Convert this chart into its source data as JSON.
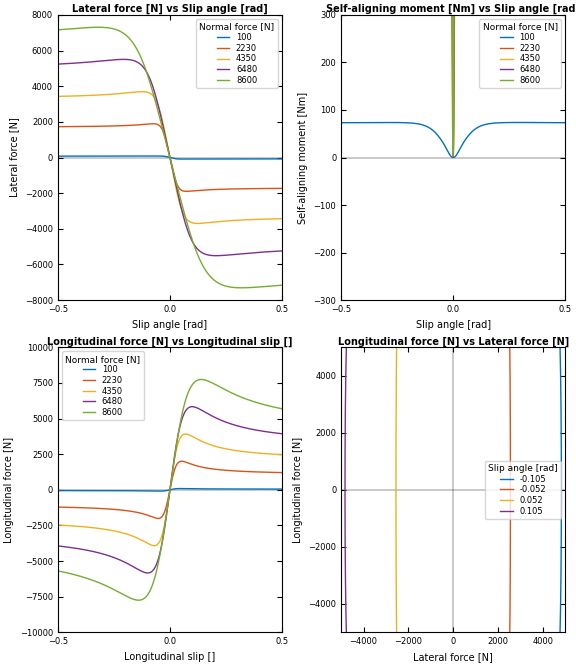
{
  "normal_forces": [
    100,
    2230,
    4350,
    6480,
    8600
  ],
  "colors_Fz": [
    "#0072BD",
    "#D95319",
    "#EDB120",
    "#7E2F8E",
    "#77AC30"
  ],
  "slip_angles_comb": [
    -0.105,
    -0.052,
    0.052,
    0.105
  ],
  "colors_sa": [
    "#0072BD",
    "#D95319",
    "#EDB120",
    "#7E2F8E"
  ],
  "ax1_title": "Lateral force [N] vs Slip angle [rad]",
  "ax1_xlabel": "Slip angle [rad]",
  "ax1_ylabel": "Lateral force [N]",
  "ax2_title": "Self-aligning moment [Nm] vs Slip angle [rad]",
  "ax2_xlabel": "Slip angle [rad]",
  "ax2_ylabel": "Self-aligning moment [Nm]",
  "ax3_title": "Longitudinal force [N] vs Longitudinal slip []",
  "ax3_xlabel": "Longitudinal slip []",
  "ax3_ylabel": "Longitudinal force [N]",
  "ax4_title": "Longitudinal force [N] vs Lateral force [N]",
  "ax4_xlabel": "Lateral force [N]",
  "ax4_ylabel": "Longitudinal force [N]",
  "legend_Fz_title": "Normal force [N]",
  "legend_sa_title": "Slip angle [rad]",
  "figsize": [
    5.76,
    6.66
  ],
  "dpi": 100
}
